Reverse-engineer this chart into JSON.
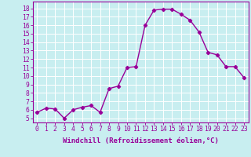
{
  "x": [
    0,
    1,
    2,
    3,
    4,
    5,
    6,
    7,
    8,
    9,
    10,
    11,
    12,
    13,
    14,
    15,
    16,
    17,
    18,
    19,
    20,
    21,
    22,
    23
  ],
  "y": [
    5.7,
    6.2,
    6.1,
    5.0,
    6.0,
    6.3,
    6.5,
    5.7,
    8.5,
    8.8,
    11.0,
    11.1,
    16.0,
    17.8,
    17.9,
    17.9,
    17.3,
    16.6,
    15.2,
    12.8,
    12.5,
    11.1,
    11.1,
    9.8
  ],
  "line_color": "#990099",
  "marker": "D",
  "markersize": 2.2,
  "linewidth": 1.0,
  "bg_color": "#c8eef0",
  "grid_color": "#ffffff",
  "xlabel": "Windchill (Refroidissement éolien,°C)",
  "xlabel_fontsize": 6.5,
  "tick_label_color": "#990099",
  "tick_fontsize": 5.8,
  "ylim": [
    4.5,
    18.8
  ],
  "xlim": [
    -0.5,
    23.5
  ],
  "yticks": [
    5,
    6,
    7,
    8,
    9,
    10,
    11,
    12,
    13,
    14,
    15,
    16,
    17,
    18
  ],
  "xticks": [
    0,
    1,
    2,
    3,
    4,
    5,
    6,
    7,
    8,
    9,
    10,
    11,
    12,
    13,
    14,
    15,
    16,
    17,
    18,
    19,
    20,
    21,
    22,
    23
  ]
}
